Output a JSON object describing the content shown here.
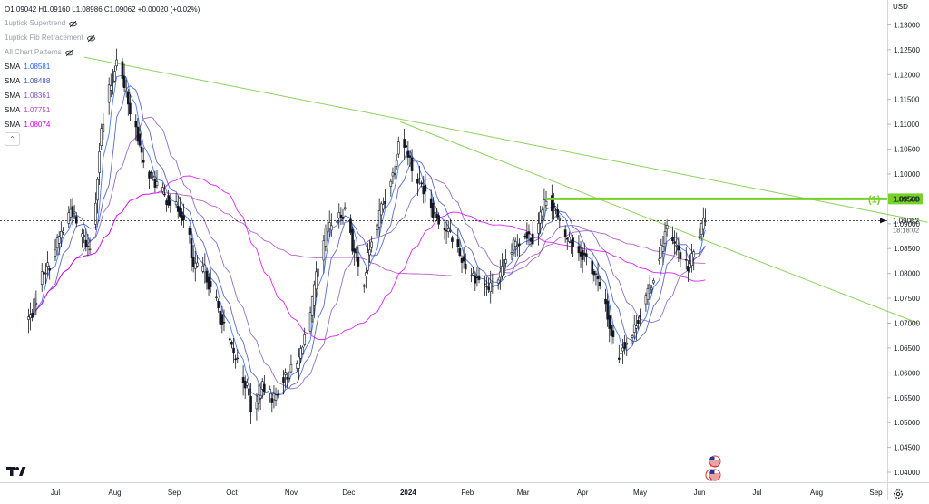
{
  "header": {
    "ohlc": "O1.09042 H1.09160 L1.08986 C1.09062 +0.00020 (+0.02%)",
    "currency": "USD"
  },
  "indicators": [
    {
      "label": "1uptick Supertrend",
      "icon": "eye-crossed-icon"
    },
    {
      "label": "1uptick Fib Retracement",
      "icon": "eye-crossed-icon"
    },
    {
      "label": "All Chart Patterns",
      "icon": "eye-crossed-icon"
    }
  ],
  "sma": [
    {
      "label": "SMA",
      "value": "1.08581",
      "color": "#2962ff"
    },
    {
      "label": "SMA",
      "value": "1.08488",
      "color": "#3f51b5"
    },
    {
      "label": "SMA",
      "value": "1.08361",
      "color": "#7e57c2"
    },
    {
      "label": "SMA",
      "value": "1.07751",
      "color": "#ab47bc"
    },
    {
      "label": "SMA",
      "value": "1.08074",
      "color": "#d500f9"
    }
  ],
  "chart_data": {
    "type": "candlestick",
    "y_ticks": [
      "1.04000",
      "1.04500",
      "1.05000",
      "1.05500",
      "1.06000",
      "1.06500",
      "1.07000",
      "1.07500",
      "1.08000",
      "1.08500",
      "1.09000",
      "1.09500",
      "1.10000",
      "1.10500",
      "1.11000",
      "1.11500",
      "1.12000",
      "1.12500",
      "1.13000"
    ],
    "ylim": [
      1.038,
      1.135
    ],
    "x_labels": [
      "Jul",
      "Aug",
      "Sep",
      "Oct",
      "Nov",
      "Dec",
      "2024",
      "Feb",
      "Mar",
      "Apr",
      "May",
      "Jun",
      "Jul",
      "Aug",
      "Sep"
    ],
    "x_label_days": [
      0,
      31,
      62,
      92,
      123,
      153,
      184,
      215,
      244,
      275,
      305,
      336,
      366,
      397,
      428
    ],
    "x_label_bold": [
      "2024"
    ],
    "last_day": 339,
    "current_price": {
      "value": "1.09062",
      "countdown": "18:18:02",
      "numeric": 1.09062
    },
    "level": {
      "label": "(1)",
      "value": "1.09500",
      "numeric": 1.095,
      "start_day": 256,
      "color": "#76d12b"
    },
    "trendlines": [
      {
        "day1": 15,
        "price1": 1.1235,
        "day2": 455,
        "price2": 1.0903,
        "color": "#8bd35b"
      },
      {
        "day1": 180,
        "price1": 1.1105,
        "day2": 450,
        "price2": 1.07,
        "color": "#8bd35b"
      }
    ],
    "keypoints": [
      [
        -14,
        1.071
      ],
      [
        -5,
        1.081
      ],
      [
        5,
        1.089
      ],
      [
        8,
        1.093
      ],
      [
        13,
        1.088
      ],
      [
        18,
        1.085
      ],
      [
        25,
        1.11
      ],
      [
        29,
        1.118
      ],
      [
        33,
        1.125
      ],
      [
        36,
        1.117
      ],
      [
        41,
        1.11
      ],
      [
        47,
        1.101
      ],
      [
        53,
        1.098
      ],
      [
        58,
        1.095
      ],
      [
        64,
        1.093
      ],
      [
        69,
        1.089
      ],
      [
        72,
        1.081
      ],
      [
        77,
        1.081
      ],
      [
        83,
        1.075
      ],
      [
        88,
        1.069
      ],
      [
        94,
        1.063
      ],
      [
        99,
        1.058
      ],
      [
        103,
        1.052
      ],
      [
        108,
        1.057
      ],
      [
        114,
        1.055
      ],
      [
        119,
        1.059
      ],
      [
        125,
        1.061
      ],
      [
        131,
        1.068
      ],
      [
        137,
        1.08
      ],
      [
        142,
        1.089
      ],
      [
        147,
        1.091
      ],
      [
        152,
        1.093
      ],
      [
        156,
        1.084
      ],
      [
        160,
        1.078
      ],
      [
        165,
        1.086
      ],
      [
        171,
        1.094
      ],
      [
        176,
        1.1
      ],
      [
        180,
        1.108
      ],
      [
        183,
        1.105
      ],
      [
        188,
        1.099
      ],
      [
        193,
        1.097
      ],
      [
        198,
        1.092
      ],
      [
        203,
        1.089
      ],
      [
        208,
        1.087
      ],
      [
        212,
        1.083
      ],
      [
        216,
        1.08
      ],
      [
        221,
        1.079
      ],
      [
        226,
        1.077
      ],
      [
        231,
        1.079
      ],
      [
        236,
        1.083
      ],
      [
        240,
        1.086
      ],
      [
        245,
        1.088
      ],
      [
        250,
        1.087
      ],
      [
        253,
        1.092
      ],
      [
        257,
        1.096
      ],
      [
        260,
        1.093
      ],
      [
        263,
        1.09
      ],
      [
        267,
        1.087
      ],
      [
        271,
        1.086
      ],
      [
        274,
        1.084
      ],
      [
        278,
        1.083
      ],
      [
        281,
        1.08
      ],
      [
        286,
        1.075
      ],
      [
        290,
        1.068
      ],
      [
        293,
        1.063
      ],
      [
        297,
        1.066
      ],
      [
        300,
        1.067
      ],
      [
        304,
        1.071
      ],
      [
        308,
        1.075
      ],
      [
        311,
        1.078
      ],
      [
        315,
        1.084
      ],
      [
        319,
        1.089
      ],
      [
        322,
        1.086
      ],
      [
        326,
        1.084
      ],
      [
        330,
        1.081
      ],
      [
        333,
        1.084
      ],
      [
        337,
        1.089
      ],
      [
        339,
        1.0906
      ]
    ],
    "events": [
      {
        "day": 344,
        "price_offset": 15,
        "icon": "us-flag-icon"
      },
      {
        "day": 344,
        "price_offset": 0,
        "icon": "us-flag-icon",
        "count": 2
      }
    ]
  }
}
